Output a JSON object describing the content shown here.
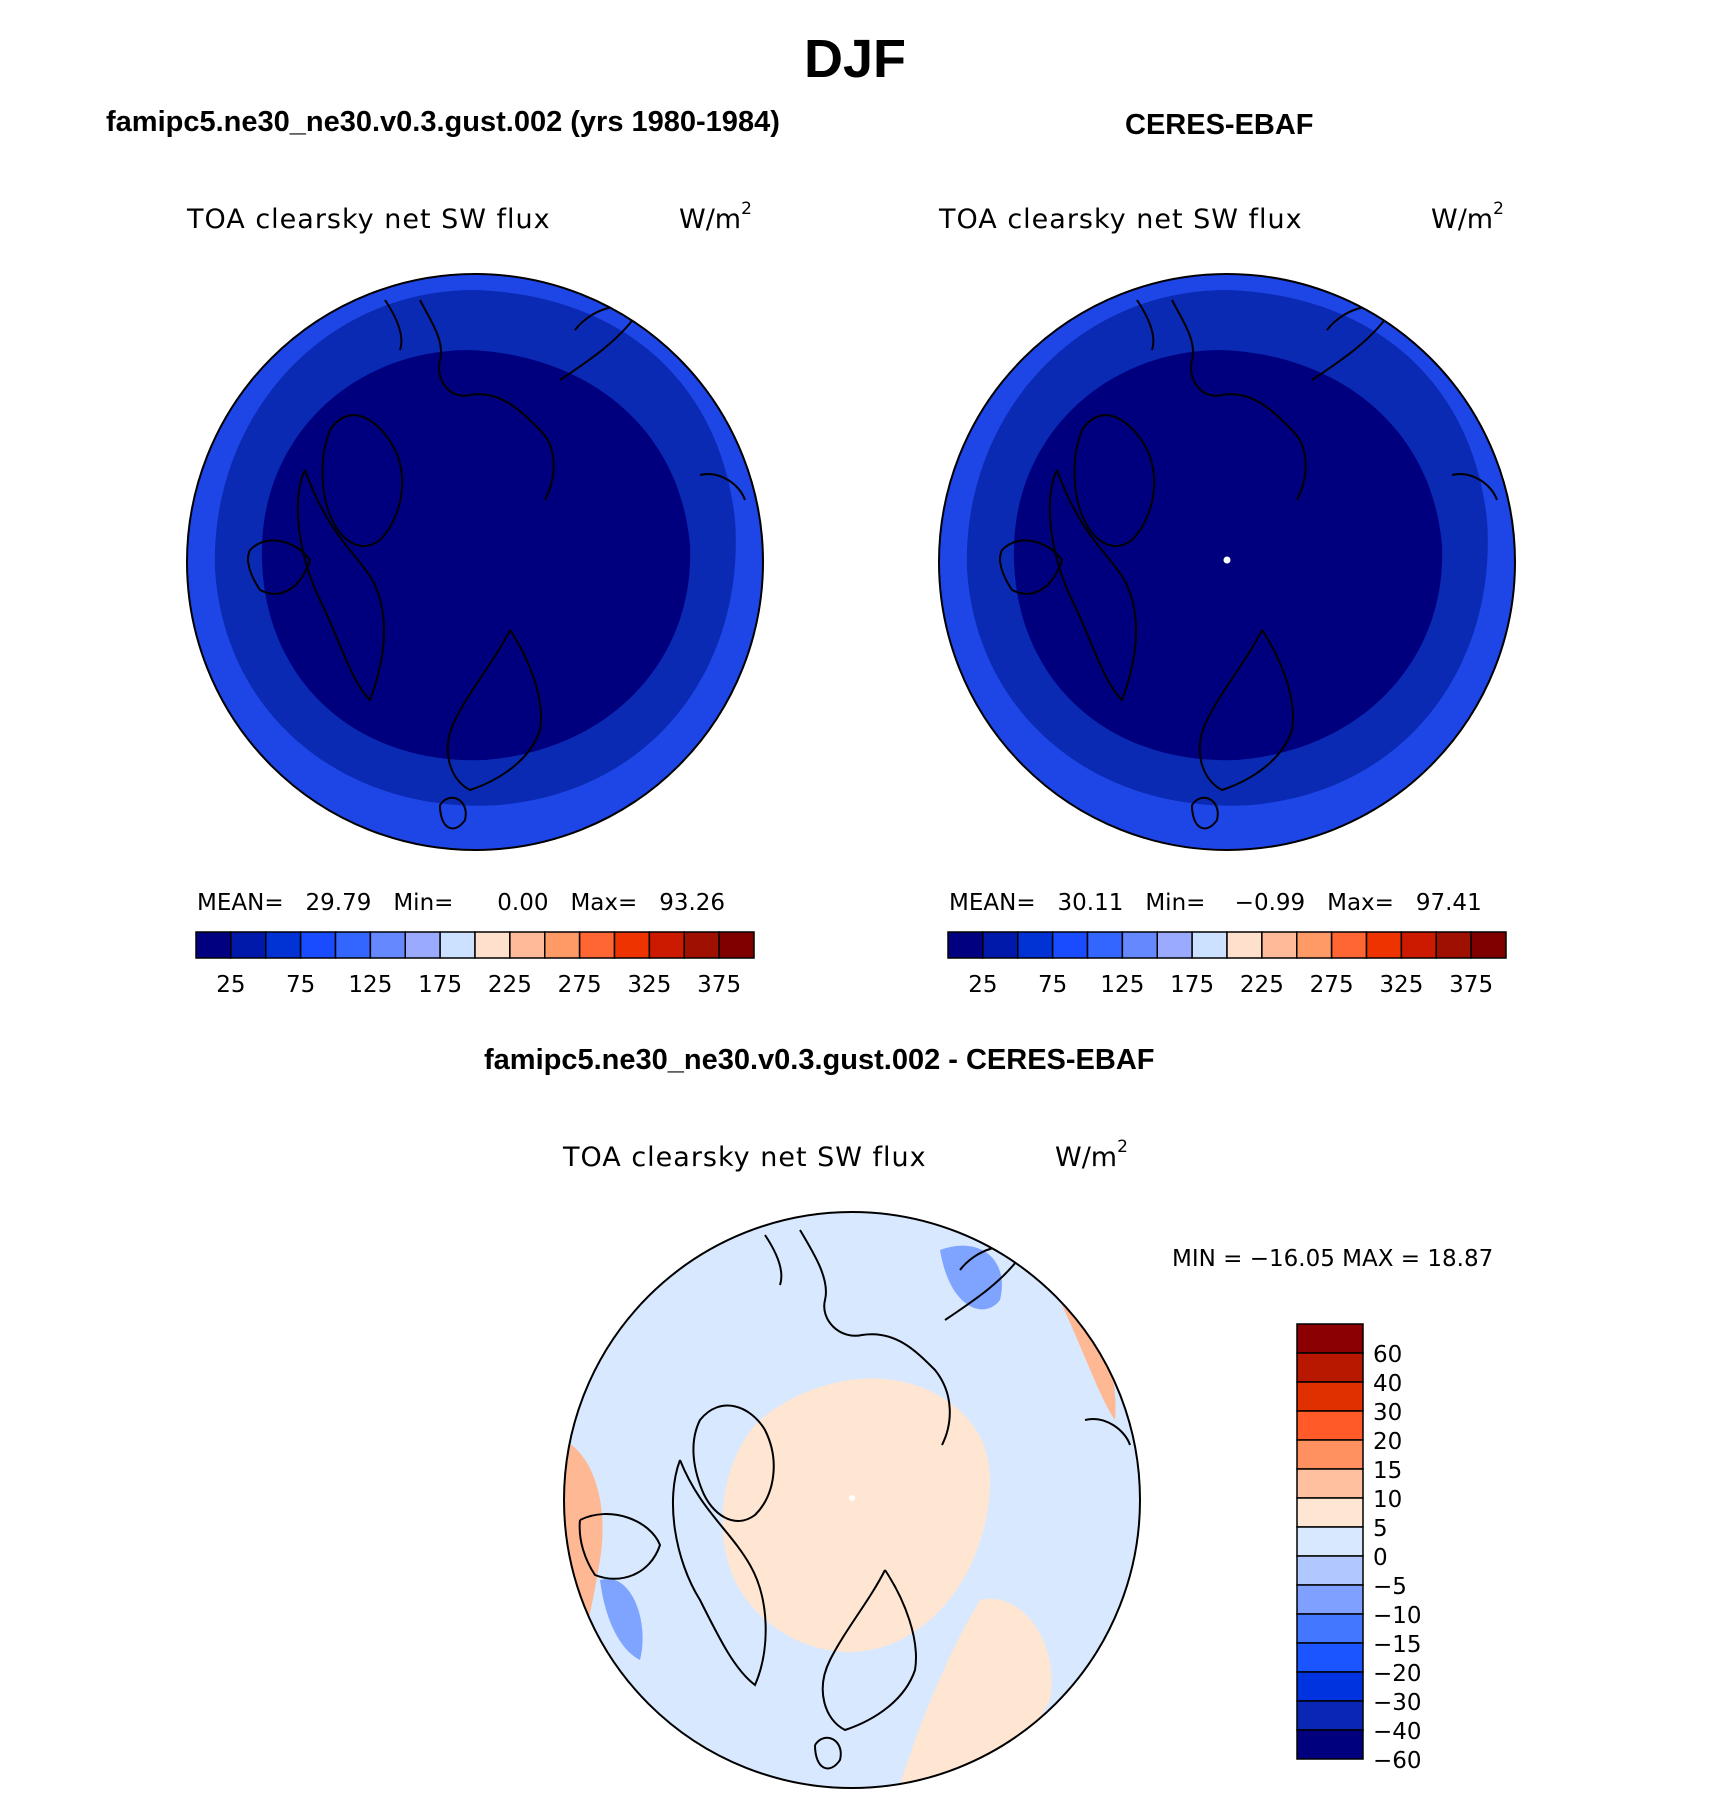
{
  "season": "DJF",
  "panels": [
    {
      "id": "model",
      "title": "famipc5.ne30_ne30.v0.3.gust.002 (yrs 1980-1984)",
      "variable": "TOA clearsky net SW flux",
      "units": "W/m",
      "units_exp": "2",
      "stats": {
        "mean_label": "MEAN=",
        "mean": "29.79",
        "min_label": "Min=",
        "min": "0.00",
        "max_label": "Max=",
        "max": "93.26"
      }
    },
    {
      "id": "obs",
      "title": "CERES-EBAF",
      "variable": "TOA clearsky net SW flux",
      "units": "W/m",
      "units_exp": "2",
      "stats": {
        "mean_label": "MEAN=",
        "mean": "30.11",
        "min_label": "Min=",
        "min": "−0.99",
        "max_label": "Max=",
        "max": "97.41"
      }
    }
  ],
  "diff_panel": {
    "title": "famipc5.ne30_ne30.v0.3.gust.002 - CERES-EBAF",
    "variable": "TOA clearsky net SW flux",
    "units": "W/m",
    "units_exp": "2",
    "minmax": "MIN = −16.05 MAX =   18.87"
  },
  "field_colorbar": {
    "colors": [
      "#000080",
      "#0019aa",
      "#0032d4",
      "#1a4cff",
      "#3366ff",
      "#6688ff",
      "#99aaff",
      "#cce0ff",
      "#ffe0cc",
      "#ffbb99",
      "#ff9966",
      "#ff6633",
      "#ee3300",
      "#cc1a00",
      "#a01000",
      "#800000"
    ],
    "tick_labels": [
      "25",
      "75",
      "125",
      "175",
      "225",
      "275",
      "325",
      "375"
    ]
  },
  "diff_colorbar": {
    "colors": [
      "#00007f",
      "#0a26b5",
      "#0033e0",
      "#1a55ff",
      "#4477ff",
      "#80a0ff",
      "#b0c8ff",
      "#d8e8ff",
      "#ffe6d2",
      "#ffc0a0",
      "#ff9060",
      "#ff5a28",
      "#e03000",
      "#b81800",
      "#8b0000"
    ],
    "tick_labels": [
      "60",
      "40",
      "30",
      "20",
      "15",
      "10",
      "5",
      "0",
      "−5",
      "−10",
      "−15",
      "−20",
      "−30",
      "−40",
      "−60"
    ]
  },
  "map_colors": {
    "outer": "#1e46e6",
    "ring": "#0a2ab4",
    "core": "#00007f",
    "diff_base": "#d8e8ff",
    "diff_pos": "#ffe6d2",
    "diff_pos2": "#ffb894",
    "diff_neg2": "#7fa4ff"
  }
}
